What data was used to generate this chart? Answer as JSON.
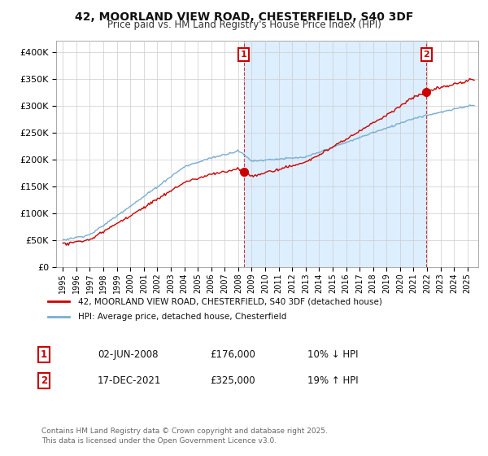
{
  "title_line1": "42, MOORLAND VIEW ROAD, CHESTERFIELD, S40 3DF",
  "title_line2": "Price paid vs. HM Land Registry's House Price Index (HPI)",
  "ytick_values": [
    0,
    50000,
    100000,
    150000,
    200000,
    250000,
    300000,
    350000,
    400000
  ],
  "ylim": [
    0,
    420000
  ],
  "xlim_year": [
    1994.5,
    2025.8
  ],
  "xtick_years": [
    1995,
    1996,
    1997,
    1998,
    1999,
    2000,
    2001,
    2002,
    2003,
    2004,
    2005,
    2006,
    2007,
    2008,
    2009,
    2010,
    2011,
    2012,
    2013,
    2014,
    2015,
    2016,
    2017,
    2018,
    2019,
    2020,
    2021,
    2022,
    2023,
    2024,
    2025
  ],
  "legend_line1": "42, MOORLAND VIEW ROAD, CHESTERFIELD, S40 3DF (detached house)",
  "legend_line2": "HPI: Average price, detached house, Chesterfield",
  "sale1_date": "02-JUN-2008",
  "sale1_price": 176000,
  "sale1_pct": "10% ↓ HPI",
  "sale2_date": "17-DEC-2021",
  "sale2_price": 325000,
  "sale2_pct": "19% ↑ HPI",
  "sale1_x": 2008.42,
  "sale2_x": 2021.96,
  "red_color": "#cc0000",
  "blue_color": "#7aadcf",
  "shade_color": "#ddeeff",
  "footnote": "Contains HM Land Registry data © Crown copyright and database right 2025.\nThis data is licensed under the Open Government Licence v3.0.",
  "bg_color": "#ffffff",
  "grid_color": "#cccccc"
}
